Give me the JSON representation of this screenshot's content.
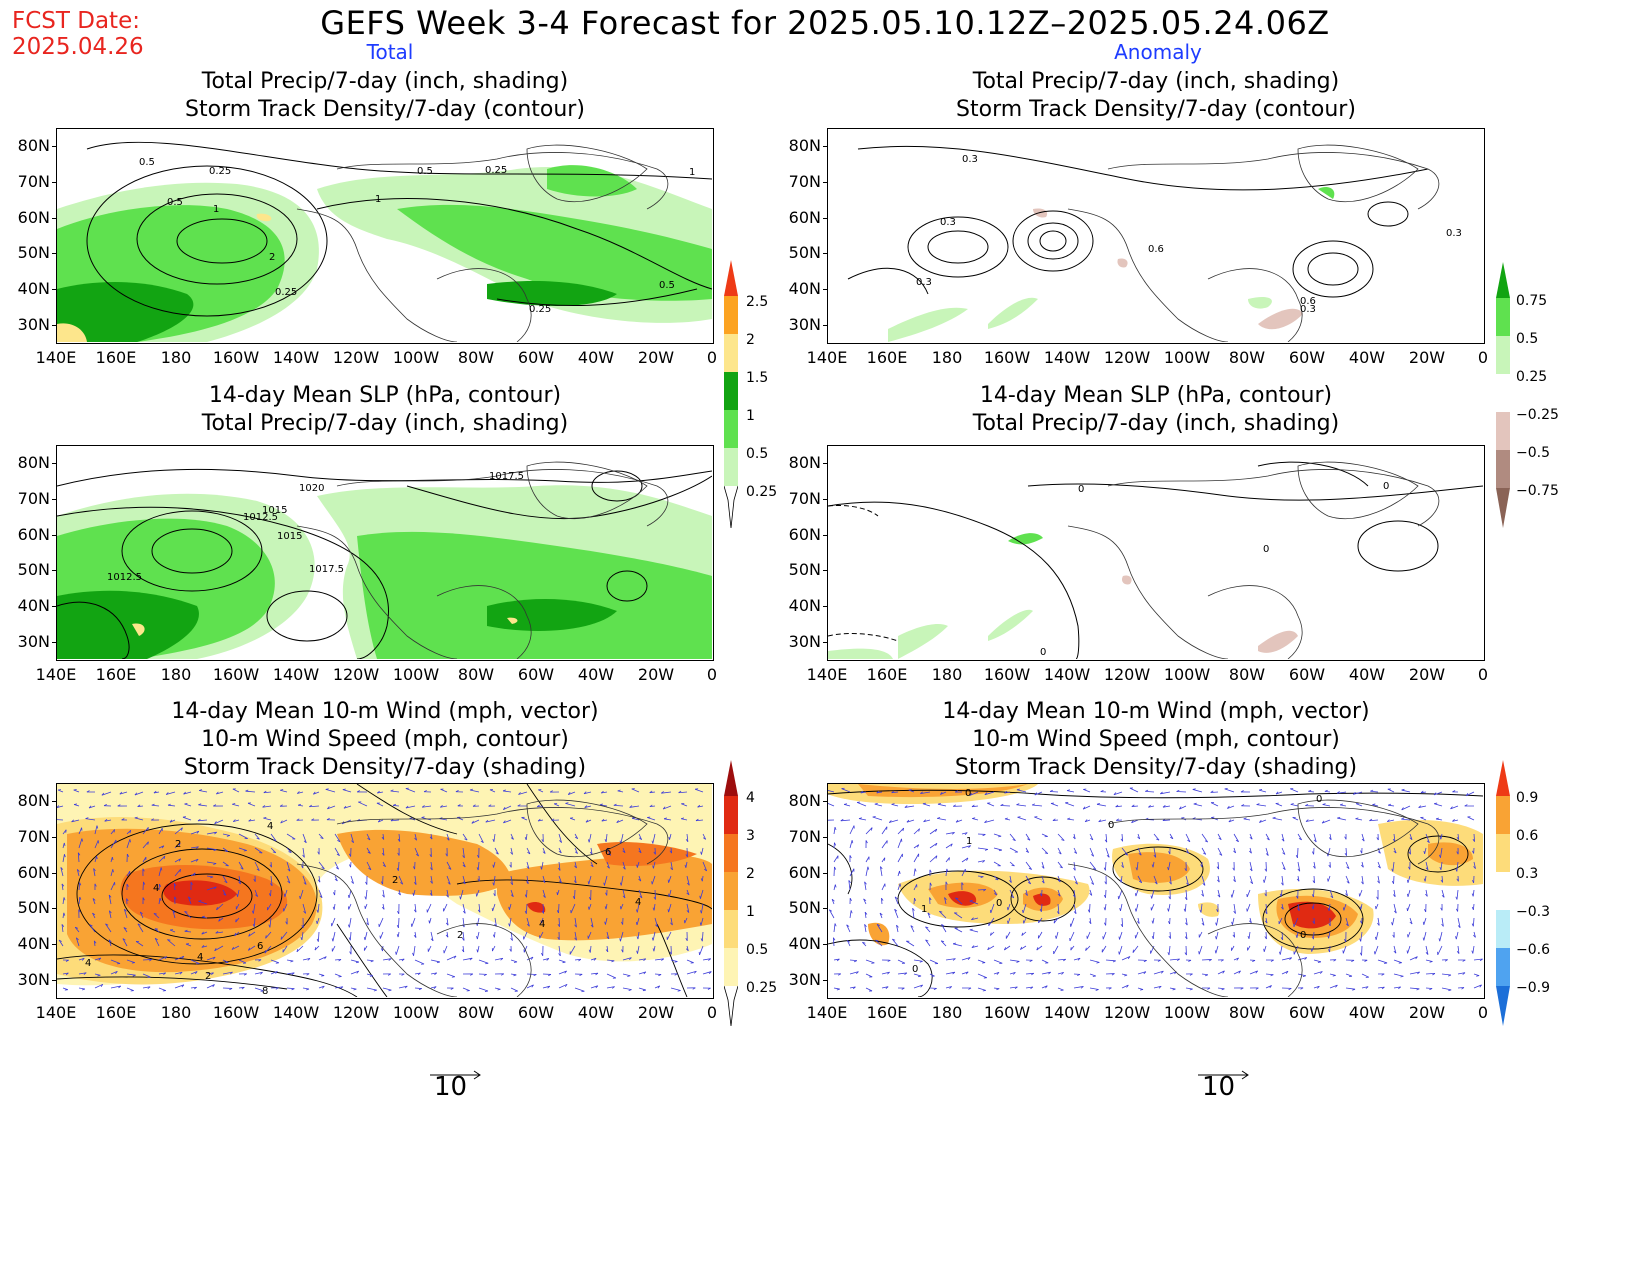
{
  "fcst_label": "FCST Date:",
  "fcst_date": "2025.04.26",
  "title": "GEFS Week 3-4 Forecast for 2025.05.10.12Z–2025.05.24.06Z",
  "columns": {
    "left": "Total",
    "right": "Anomaly"
  },
  "panels": {
    "precip_storm": {
      "line1": "Total Precip/7-day (inch, shading)",
      "line2": "Storm Track Density/7-day (contour)"
    },
    "slp_precip": {
      "line1": "14-day Mean SLP (hPa, contour)",
      "line2": "Total Precip/7-day (inch, shading)"
    },
    "wind": {
      "line1": "14-day Mean 10-m Wind (mph, vector)",
      "line2": "10-m Wind Speed (mph, contour)",
      "line3": "Storm Track Density/7-day (shading)"
    }
  },
  "axes": {
    "lat_labels": [
      "80N",
      "70N",
      "60N",
      "50N",
      "40N",
      "30N"
    ],
    "lon_labels": [
      "140E",
      "160E",
      "180",
      "160W",
      "140W",
      "120W",
      "100W",
      "80W",
      "60W",
      "40W",
      "20W",
      "0"
    ]
  },
  "colorbars": {
    "precip_total": [
      "2.5",
      "2",
      "1.5",
      "1",
      "0.5",
      "0.25"
    ],
    "precip_anomaly": [
      "0.75",
      "0.5",
      "0.25",
      "−0.25",
      "−0.5",
      "−0.75"
    ],
    "storm_total": [
      "4",
      "3",
      "2",
      "1",
      "0.5",
      "0.25"
    ],
    "storm_anomaly": [
      "0.9",
      "0.6",
      "0.3",
      "−0.3",
      "−0.6",
      "−0.9"
    ]
  },
  "contour_labels": {
    "tl": [
      "0.5",
      "0.25",
      "0.5",
      "1",
      "2",
      "1",
      "0.25",
      "0.25",
      "0.5",
      "0.25",
      "1",
      "0.5"
    ],
    "tr": [
      "0.3",
      "0.3",
      "0.3",
      "0.6",
      "0.6",
      "0.3",
      "0.3"
    ],
    "ml": [
      "1020",
      "1017.5",
      "1015",
      "1012.5",
      "1015",
      "1017.5",
      "1012.5"
    ],
    "mr": [
      "0",
      "0",
      "0",
      "0"
    ],
    "bl": [
      "4",
      "2",
      "4",
      "6",
      "4",
      "2",
      "8",
      "2",
      "4",
      "6",
      "4",
      "4",
      "2"
    ],
    "br": [
      "0",
      "0",
      "1",
      "1",
      "0",
      "0",
      "0",
      "0"
    ]
  },
  "vector_reference": {
    "left": "10",
    "right": "10"
  },
  "colors": {
    "green_light": "#c8f5b9",
    "green_mid": "#5fe14f",
    "green_dark": "#12a412",
    "yellow": "#fde68c",
    "orange": "#fca321",
    "red": "#ee3a16",
    "brown_light": "#e3c5bd",
    "brown_mid": "#b08b80",
    "brown_dark": "#8a6356",
    "cream": "#fef4b4",
    "st_yellow": "#fddc7a",
    "st_orange": "#f9a334",
    "st_deep": "#f5761f",
    "st_red": "#e02a12",
    "st_dark": "#9d0d0d",
    "cyan_light": "#b9ecf7",
    "blue_mid": "#4fa3f0",
    "blue_dark": "#1c6fd8",
    "vector": "#3b3bd8"
  }
}
